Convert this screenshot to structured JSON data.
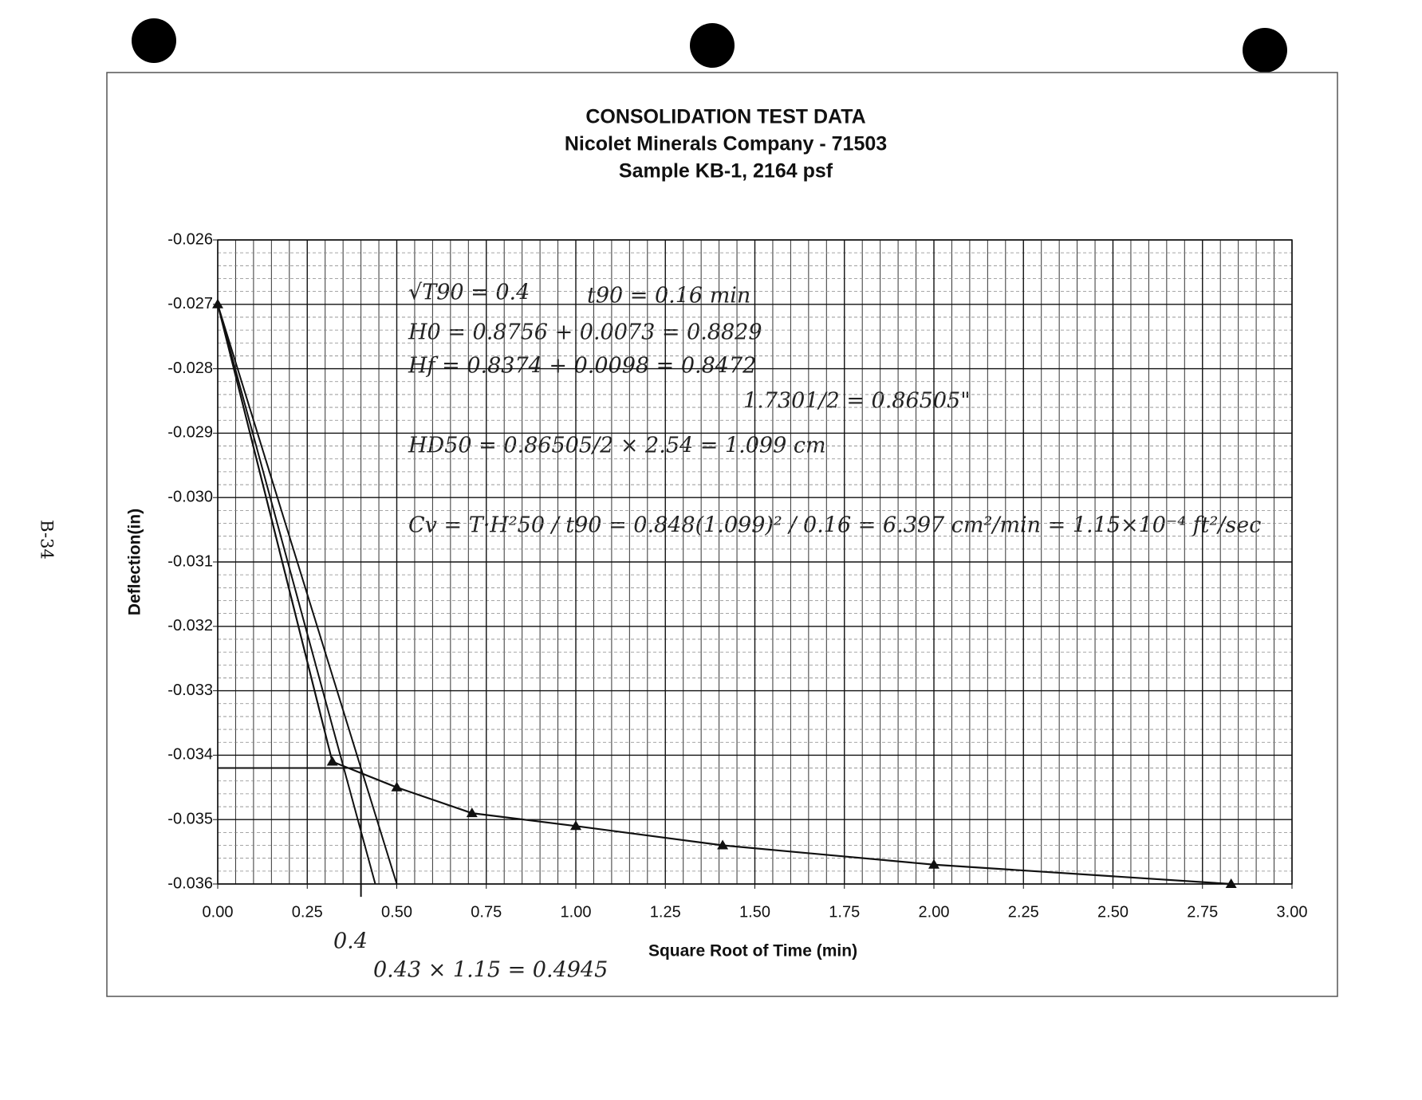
{
  "chart_data": {
    "type": "line",
    "title": "CONSOLIDATION TEST DATA",
    "subtitle": "Nicolet Minerals Company - 71503",
    "subtitle2": "Sample KB-1, 2164 psf",
    "x_label": "Square Root of Time (min)",
    "y_label": "Deflection(in)",
    "page_label": "B-34",
    "x": [
      0,
      0.32,
      0.5,
      0.71,
      1.0,
      1.41,
      2.0,
      2.83
    ],
    "series": [
      {
        "color": "#111111",
        "values": [
          -0.027,
          -0.0341,
          -0.0345,
          -0.0349,
          -0.0351,
          -0.0354,
          -0.0357,
          -0.036
        ]
      }
    ],
    "xlim": [
      0,
      3
    ],
    "ylim": [
      -0.036,
      -0.026
    ],
    "xticks": [
      {
        "value": 0,
        "label": "0.00"
      },
      {
        "value": 0.25,
        "label": "0.25"
      },
      {
        "value": 0.5,
        "label": "0.50"
      },
      {
        "value": 0.75,
        "label": "0.75"
      },
      {
        "value": 1,
        "label": "1.00"
      },
      {
        "value": 1.25,
        "label": "1.25"
      },
      {
        "value": 1.5,
        "label": "1.50"
      },
      {
        "value": 1.75,
        "label": "1.75"
      },
      {
        "value": 2,
        "label": "2.00"
      },
      {
        "value": 2.25,
        "label": "2.25"
      },
      {
        "value": 2.5,
        "label": "2.50"
      },
      {
        "value": 2.75,
        "label": "2.75"
      },
      {
        "value": 3,
        "label": "3.00"
      }
    ],
    "yticks": [
      {
        "value": -0.026,
        "label": "-0.026"
      },
      {
        "value": -0.027,
        "label": "-0.027"
      },
      {
        "value": -0.028,
        "label": "-0.028"
      },
      {
        "value": -0.029,
        "label": "-0.029"
      },
      {
        "value": -0.03,
        "label": "-0.030"
      },
      {
        "value": -0.031,
        "label": "-0.031"
      },
      {
        "value": -0.032,
        "label": "-0.032"
      },
      {
        "value": -0.033,
        "label": "-0.033"
      },
      {
        "value": -0.034,
        "label": "-0.034"
      },
      {
        "value": -0.035,
        "label": "-0.035"
      },
      {
        "value": -0.036,
        "label": "-0.036"
      }
    ],
    "grid": true,
    "x_minor_per_major": 5,
    "y_minor_per_major": 5,
    "construction_lines": [
      {
        "x": [
          0,
          0.44
        ],
        "y": [
          -0.027,
          -0.036
        ]
      },
      {
        "x": [
          0,
          0.5
        ],
        "y": [
          -0.027,
          -0.036
        ]
      },
      {
        "x": [
          0,
          0.4
        ],
        "y": [
          -0.0342,
          -0.0342
        ]
      },
      {
        "x": [
          0.4,
          0.4
        ],
        "y": [
          -0.0342,
          -0.0362
        ]
      }
    ],
    "annotations": [
      "√T90 = 0.4",
      "t90 = 0.16 min",
      "H0 = 0.8756 + 0.0073 = 0.8829",
      "Hf = 0.8374 + 0.0098 = 0.8472",
      "1.7301/2 = 0.86505\"",
      "HD50 = 0.86505/2 × 2.54 = 1.099 cm",
      "Cv = T·H²50 / t90 = 0.848(1.099)² / 0.16 = 6.397 cm²/min = 1.15×10⁻⁴ ft²/sec",
      "0.4",
      "0.43 × 1.15 = 0.4945"
    ]
  }
}
